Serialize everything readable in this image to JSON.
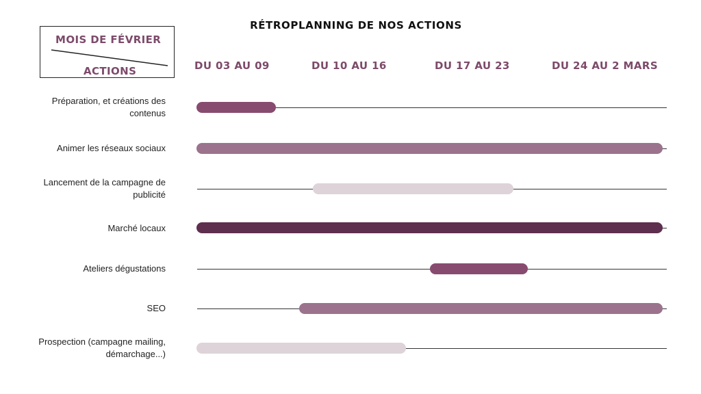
{
  "title": "RÉTROPLANNING DE NOS ACTIONS",
  "corner": {
    "top": "MOIS DE FÉVRIER",
    "bottom": "ACTIONS"
  },
  "weeks": [
    "DU 03 AU 09",
    "DU 10 AU 16",
    "DU 17 AU 23",
    "DU 24 AU 2 MARS"
  ],
  "colors": {
    "accent": "#7d4a6a",
    "dark": "#5e2f4f",
    "medium": "#9b738d",
    "light": "#ddd3d9",
    "bright": "#884b70"
  },
  "rows": [
    {
      "label": "Préparation, et créations des contenus",
      "start": 0.0,
      "end": 0.17,
      "color": "#884b70"
    },
    {
      "label": "Animer les réseaux sociaux",
      "start": 0.0,
      "end": 1.0,
      "color": "#9b738d"
    },
    {
      "label": "Lancement de la campagne de publicité",
      "start": 0.25,
      "end": 0.68,
      "color": "#ddd3d9"
    },
    {
      "label": "Marché locaux",
      "start": 0.0,
      "end": 1.0,
      "color": "#5e2f4f"
    },
    {
      "label": "Ateliers dégustations",
      "start": 0.5,
      "end": 0.71,
      "color": "#884b70"
    },
    {
      "label": "SEO",
      "start": 0.22,
      "end": 1.0,
      "color": "#9b738d"
    },
    {
      "label": "Prospection (campagne mailing, démarchage...)",
      "start": 0.0,
      "end": 0.45,
      "color": "#ddd3d9"
    }
  ]
}
